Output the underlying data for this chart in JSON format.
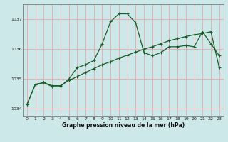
{
  "xlabel": "Graphe pression niveau de la mer (hPa)",
  "bg_color": "#cce8e8",
  "grid_color": "#e8b0b0",
  "line_color": "#1a5c28",
  "ylim": [
    1033.75,
    1037.5
  ],
  "xlim": [
    -0.5,
    23.5
  ],
  "yticks": [
    1034,
    1035,
    1036,
    1037
  ],
  "xticks": [
    0,
    1,
    2,
    3,
    4,
    5,
    6,
    7,
    8,
    9,
    10,
    11,
    12,
    13,
    14,
    15,
    16,
    17,
    18,
    19,
    20,
    21,
    22,
    23
  ],
  "line1_x": [
    0,
    1,
    2,
    3,
    4,
    5,
    6,
    7,
    8,
    9,
    10,
    11,
    12,
    13,
    14,
    15,
    16,
    17,
    18,
    19,
    20,
    21,
    22,
    23
  ],
  "line1_y": [
    1034.15,
    1034.82,
    1034.88,
    1034.78,
    1034.78,
    1034.95,
    1035.08,
    1035.22,
    1035.35,
    1035.48,
    1035.58,
    1035.7,
    1035.8,
    1035.9,
    1036.0,
    1036.08,
    1036.18,
    1036.28,
    1036.35,
    1036.42,
    1036.48,
    1036.52,
    1036.58,
    1035.38
  ],
  "line2_x": [
    0,
    1,
    2,
    3,
    4,
    5,
    6,
    7,
    8,
    9,
    10,
    11,
    12,
    13,
    14,
    15,
    16,
    17,
    18,
    19,
    20,
    21,
    22,
    23
  ],
  "line2_y": [
    1034.15,
    1034.82,
    1034.88,
    1034.75,
    1034.75,
    1035.0,
    1035.38,
    1035.48,
    1035.62,
    1036.18,
    1036.92,
    1037.18,
    1037.18,
    1036.88,
    1035.88,
    1035.78,
    1035.88,
    1036.08,
    1036.08,
    1036.12,
    1036.08,
    1036.58,
    1036.18,
    1035.78
  ]
}
